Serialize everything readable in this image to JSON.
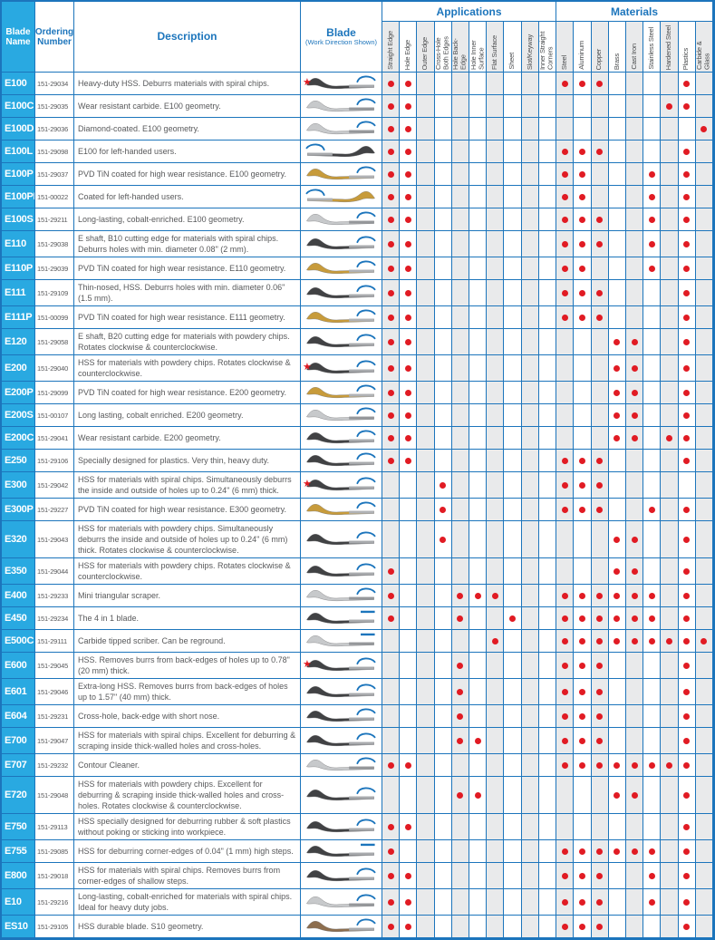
{
  "header": {
    "blade_name": "Blade Name",
    "ordering_number": "Ordering Number",
    "description": "Description",
    "blade": "Blade",
    "blade_sub": "(Work Direction Shown)",
    "applications_label": "Applications",
    "materials_label": "Materials",
    "application_columns": [
      "Straight Edge",
      "Hole Edge",
      "Outer Edge",
      "Cross-Hole Both Edges",
      "Hole Back-Edge",
      "Hole Inner Surface",
      "Flat Surface",
      "Sheet",
      "Slot/Keyway",
      "Inner Straight Corners"
    ],
    "material_columns": [
      "Steel",
      "Aluminum",
      "Copper",
      "Brass",
      "Cast Iron",
      "Stainless Steel",
      "Hardened Steel",
      "Plastics",
      "Carbide & Glass"
    ]
  },
  "icons": {
    "star": "★"
  },
  "colors": {
    "accent_blue": "#1c75bc",
    "cyan_header": "#29a9e1",
    "dot_red": "#e11b23",
    "column_shade": "#e9eaeb",
    "text_gray": "#58595b"
  },
  "blade_styles": {
    "dark": {
      "front": "#414244",
      "rear": "#a8aaad"
    },
    "silver": {
      "front": "#c7c9cb",
      "rear": "#95979a"
    },
    "gold": {
      "front": "#c79b3b",
      "rear": "#b0b2b5"
    },
    "bronze": {
      "front": "#8d6e4e",
      "rear": "#a8aaad"
    }
  },
  "rows": [
    {
      "name": "E100",
      "order": "151-29034",
      "desc": "Heavy-duty HSS. Deburrs materials with spiral chips.",
      "star": true,
      "blade": "dark",
      "flip": false,
      "arrow": "arc",
      "apps": [
        1,
        2
      ],
      "mats": [
        1,
        2,
        3,
        8
      ]
    },
    {
      "name": "E100C",
      "order": "151-29035",
      "desc": "Wear resistant carbide. E100 geometry.",
      "star": false,
      "blade": "silver",
      "flip": false,
      "arrow": "arc",
      "apps": [
        1,
        2
      ],
      "mats": [
        7,
        8
      ]
    },
    {
      "name": "E100D",
      "order": "151-29036",
      "desc": "Diamond-coated. E100 geometry.",
      "star": false,
      "blade": "silver",
      "flip": false,
      "arrow": "arc",
      "apps": [
        1,
        2
      ],
      "mats": [
        9
      ]
    },
    {
      "name": "E100L",
      "order": "151-29098",
      "desc": "E100 for left-handed users.",
      "star": false,
      "blade": "dark",
      "flip": true,
      "arrow": "arc",
      "apps": [
        1,
        2
      ],
      "mats": [
        1,
        2,
        3,
        8
      ]
    },
    {
      "name": "E100P",
      "order": "151-29037",
      "desc": "PVD TiN coated for high wear resistance. E100 geometry.",
      "star": false,
      "blade": "gold",
      "flip": false,
      "arrow": "arc",
      "apps": [
        1,
        2
      ],
      "mats": [
        1,
        2,
        6,
        8
      ]
    },
    {
      "name": "E100PL",
      "order": "151-00022",
      "desc": "Coated for left-handed users.",
      "star": false,
      "blade": "gold",
      "flip": true,
      "arrow": "arc",
      "apps": [
        1,
        2
      ],
      "mats": [
        1,
        2,
        6,
        8
      ]
    },
    {
      "name": "E100S",
      "order": "151-29211",
      "desc": "Long-lasting, cobalt-enriched. E100 geometry.",
      "star": false,
      "blade": "silver",
      "flip": false,
      "arrow": "arc",
      "apps": [
        1,
        2
      ],
      "mats": [
        1,
        2,
        3,
        6,
        8
      ]
    },
    {
      "name": "E110",
      "order": "151-29038",
      "desc": "E shaft, B10 cutting edge for materials with spiral chips. Deburrs holes with min. diameter 0.08\" (2 mm).",
      "star": false,
      "blade": "dark",
      "flip": false,
      "arrow": "arc",
      "apps": [
        1,
        2
      ],
      "mats": [
        1,
        2,
        3,
        6,
        8
      ]
    },
    {
      "name": "E110P",
      "order": "151-29039",
      "desc": "PVD TiN coated for high wear resistance. E110 geometry.",
      "star": false,
      "blade": "gold",
      "flip": false,
      "arrow": "arc",
      "apps": [
        1,
        2
      ],
      "mats": [
        1,
        2,
        6,
        8
      ]
    },
    {
      "name": "E111",
      "order": "151-29109",
      "desc": "Thin-nosed, HSS. Deburrs holes with min. diameter 0.06\" (1.5 mm).",
      "star": false,
      "blade": "dark",
      "flip": false,
      "arrow": "arc",
      "apps": [
        1,
        2
      ],
      "mats": [
        1,
        2,
        3,
        8
      ]
    },
    {
      "name": "E111P",
      "order": "151-00099",
      "desc": "PVD TiN coated for high wear resistance. E111 geometry.",
      "star": false,
      "blade": "gold",
      "flip": false,
      "arrow": "arc",
      "apps": [
        1,
        2
      ],
      "mats": [
        1,
        2,
        3,
        8
      ]
    },
    {
      "name": "E120",
      "order": "151-29058",
      "desc": "E shaft, B20 cutting edge for materials with powdery chips. Rotates clockwise & counterclockwise.",
      "star": false,
      "blade": "dark",
      "flip": false,
      "arrow": "arc",
      "apps": [
        1,
        2
      ],
      "mats": [
        4,
        5,
        8
      ]
    },
    {
      "name": "E200",
      "order": "151-29040",
      "desc": "HSS for materials with powdery chips. Rotates clockwise & counterclockwise.",
      "star": true,
      "blade": "dark",
      "flip": false,
      "arrow": "arc",
      "apps": [
        1,
        2
      ],
      "mats": [
        4,
        5,
        8
      ]
    },
    {
      "name": "E200P",
      "order": "151-29099",
      "desc": "PVD TiN coated for high wear resistance. E200 geometry.",
      "star": false,
      "blade": "gold",
      "flip": false,
      "arrow": "arc",
      "apps": [
        1,
        2
      ],
      "mats": [
        4,
        5,
        8
      ]
    },
    {
      "name": "E200S",
      "order": "151-00107",
      "desc": "Long lasting, cobalt enriched. E200 geometry.",
      "star": false,
      "blade": "silver",
      "flip": false,
      "arrow": "arc",
      "apps": [
        1,
        2
      ],
      "mats": [
        4,
        5,
        8
      ]
    },
    {
      "name": "E200C",
      "order": "151-29041",
      "desc": "Wear resistant carbide. E200 geometry.",
      "star": false,
      "blade": "dark",
      "flip": false,
      "arrow": "arc",
      "apps": [
        1,
        2
      ],
      "mats": [
        4,
        5,
        7,
        8
      ]
    },
    {
      "name": "E250",
      "order": "151-29106",
      "desc": "Specially designed for plastics. Very thin, heavy duty.",
      "star": false,
      "blade": "dark",
      "flip": false,
      "arrow": "arc",
      "apps": [
        1,
        2
      ],
      "mats": [
        1,
        2,
        3,
        8
      ]
    },
    {
      "name": "E300",
      "order": "151-29042",
      "desc": "HSS for materials with spiral chips. Simultaneously deburrs the inside and outside of holes up to 0.24\" (6 mm) thick.",
      "star": true,
      "blade": "dark",
      "flip": false,
      "arrow": "arc",
      "apps": [
        4
      ],
      "mats": [
        1,
        2,
        3
      ]
    },
    {
      "name": "E300P",
      "order": "151-29227",
      "desc": "PVD TiN coated for high wear resistance. E300 geometry.",
      "star": false,
      "blade": "gold",
      "flip": false,
      "arrow": "arc",
      "apps": [
        4
      ],
      "mats": [
        1,
        2,
        3,
        6,
        8
      ]
    },
    {
      "name": "E320",
      "order": "151-29043",
      "desc": "HSS for materials with powdery chips. Simultaneously deburrs the inside and outside of holes up to 0.24\" (6 mm) thick. Rotates clockwise & counterclockwise.",
      "star": false,
      "blade": "dark",
      "flip": false,
      "arrow": "arc",
      "apps": [
        4
      ],
      "mats": [
        4,
        5,
        8
      ]
    },
    {
      "name": "E350",
      "order": "151-29044",
      "desc": "HSS for materials with powdery chips. Rotates clockwise & counterclockwise.",
      "star": false,
      "blade": "dark",
      "flip": false,
      "arrow": "arc",
      "apps": [
        1
      ],
      "mats": [
        4,
        5,
        8
      ]
    },
    {
      "name": "E400",
      "order": "151-29233",
      "desc": "Mini triangular scraper.",
      "star": false,
      "blade": "silver",
      "flip": false,
      "arrow": "arc",
      "apps": [
        1,
        5,
        6,
        7
      ],
      "mats": [
        1,
        2,
        3,
        4,
        5,
        6,
        8
      ]
    },
    {
      "name": "E450",
      "order": "151-29234",
      "desc": "The 4 in 1 blade.",
      "star": false,
      "blade": "dark",
      "flip": false,
      "arrow": "dash",
      "apps": [
        1,
        5,
        8
      ],
      "mats": [
        1,
        2,
        3,
        4,
        5,
        6,
        8
      ]
    },
    {
      "name": "E500C",
      "order": "151-29111",
      "desc": "Carbide tipped scriber. Can be reground.",
      "star": false,
      "blade": "silver",
      "flip": false,
      "arrow": "dash",
      "apps": [
        7
      ],
      "mats": [
        1,
        2,
        3,
        4,
        5,
        6,
        7,
        8,
        9
      ]
    },
    {
      "name": "E600",
      "order": "151-29045",
      "desc": "HSS. Removes burrs from back-edges of holes up to 0.78\" (20 mm) thick.",
      "star": true,
      "blade": "dark",
      "flip": false,
      "arrow": "arc",
      "apps": [
        5
      ],
      "mats": [
        1,
        2,
        3,
        8
      ]
    },
    {
      "name": "E601",
      "order": "151-29046",
      "desc": "Extra-long HSS. Removes burrs from back-edges of holes up to 1.57\" (40 mm) thick.",
      "star": false,
      "blade": "dark",
      "flip": false,
      "arrow": "arc",
      "apps": [
        5
      ],
      "mats": [
        1,
        2,
        3,
        8
      ]
    },
    {
      "name": "E604",
      "order": "151-29231",
      "desc": "Cross-hole, back-edge with short nose.",
      "star": false,
      "blade": "dark",
      "flip": false,
      "arrow": "arc",
      "apps": [
        5
      ],
      "mats": [
        1,
        2,
        3,
        8
      ]
    },
    {
      "name": "E700",
      "order": "151-29047",
      "desc": "HSS for materials with spiral chips. Excellent for deburring & scraping inside thick-walled holes and cross-holes.",
      "star": false,
      "blade": "dark",
      "flip": false,
      "arrow": "arc",
      "apps": [
        5,
        6
      ],
      "mats": [
        1,
        2,
        3,
        8
      ]
    },
    {
      "name": "E707",
      "order": "151-29232",
      "desc": "Contour Cleaner.",
      "star": false,
      "blade": "silver",
      "flip": false,
      "arrow": "arc",
      "apps": [
        1,
        2
      ],
      "mats": [
        1,
        2,
        3,
        4,
        5,
        6,
        7,
        8
      ]
    },
    {
      "name": "E720",
      "order": "151-29048",
      "desc": "HSS for materials with powdery chips. Excellent for deburring & scraping inside thick-walled holes and cross-holes. Rotates clockwise & counterclockwise.",
      "star": false,
      "blade": "dark",
      "flip": false,
      "arrow": "arc",
      "apps": [
        5,
        6
      ],
      "mats": [
        4,
        5,
        8
      ]
    },
    {
      "name": "E750",
      "order": "151-29113",
      "desc": "HSS specially designed for deburring rubber & soft plastics without poking or sticking into workpiece.",
      "star": false,
      "blade": "dark",
      "flip": false,
      "arrow": "arc",
      "apps": [
        1,
        2
      ],
      "mats": [
        8
      ]
    },
    {
      "name": "E755",
      "order": "151-29085",
      "desc": "HSS for deburring corner-edges of 0.04\" (1 mm) high steps.",
      "star": false,
      "blade": "dark",
      "flip": false,
      "arrow": "dash",
      "apps": [
        1
      ],
      "mats": [
        1,
        2,
        3,
        4,
        5,
        6,
        8
      ]
    },
    {
      "name": "E800",
      "order": "151-29018",
      "desc": "HSS for materials with spiral chips. Removes burrs from corner-edges of shallow steps.",
      "star": false,
      "blade": "dark",
      "flip": false,
      "arrow": "arc",
      "apps": [
        1,
        2
      ],
      "mats": [
        1,
        2,
        3,
        6,
        8
      ]
    },
    {
      "name": "E10",
      "order": "151-29216",
      "desc": "Long-lasting, cobalt-enriched for materials with spiral chips. Ideal for heavy duty jobs.",
      "star": false,
      "blade": "silver",
      "flip": false,
      "arrow": "arc",
      "apps": [
        1,
        2
      ],
      "mats": [
        1,
        2,
        3,
        6,
        8
      ]
    },
    {
      "name": "ES10",
      "order": "151-29105",
      "desc": "HSS durable blade. S10 geometry.",
      "star": false,
      "blade": "bronze",
      "flip": false,
      "arrow": "arc",
      "apps": [
        1,
        2
      ],
      "mats": [
        1,
        2,
        3,
        8
      ]
    }
  ]
}
